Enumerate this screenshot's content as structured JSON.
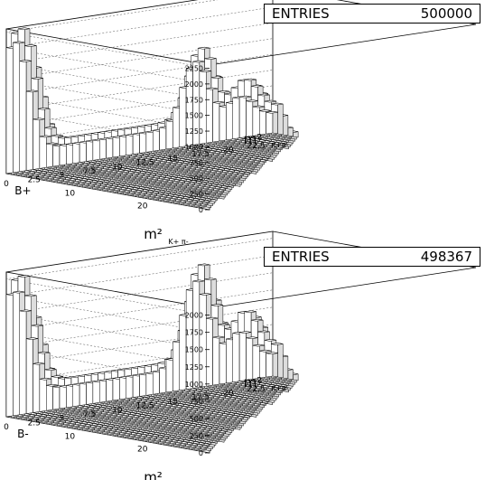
{
  "chart_data": [
    {
      "type": "3d-lego-histogram",
      "stats": {
        "label": "ENTRIES",
        "value": "500000"
      },
      "x_axis": {
        "label": "m²",
        "subscript": "π+π-",
        "ticks": [
          "0",
          "2.5",
          "5",
          "7.5",
          "10",
          "12.5",
          "15",
          "17.5",
          "20",
          "22.5"
        ],
        "range": [
          0,
          24
        ]
      },
      "y_axis": {
        "label": "m²",
        "subscript": "K+ π-",
        "ticks": [
          "10",
          "20"
        ],
        "range": [
          0,
          28
        ]
      },
      "z_axis": {
        "ticks": [
          "0",
          "250",
          "500",
          "750",
          "1000",
          "1250",
          "1500",
          "1750",
          "2000",
          "2250"
        ],
        "range": [
          0,
          2300
        ]
      },
      "title": "B+",
      "peaks": [
        {
          "x": 0.5,
          "y": 27,
          "z": 1600
        },
        {
          "x": 1,
          "y": 1,
          "z": 1600
        },
        {
          "x": 17,
          "y": 1,
          "z": 1100
        },
        {
          "x": 21,
          "y": 2,
          "z": 600
        }
      ]
    },
    {
      "type": "3d-lego-histogram",
      "stats": {
        "label": "ENTRIES",
        "value": "498367"
      },
      "x_axis": {
        "label": "m²",
        "subscript": "π+π-",
        "ticks": [
          "0",
          "2.5",
          "5",
          "7.5",
          "10",
          "12.5",
          "15",
          "17.5",
          "20",
          "22.5"
        ],
        "range": [
          0,
          24
        ]
      },
      "y_axis": {
        "label": "m²",
        "subscript": "K- π+",
        "ticks": [
          "10",
          "20"
        ],
        "range": [
          0,
          28
        ]
      },
      "z_axis": {
        "ticks": [
          "0",
          "250",
          "500",
          "750",
          "1000",
          "1250",
          "1500",
          "1750",
          "2000"
        ],
        "range": [
          0,
          2100
        ]
      },
      "title": "B-",
      "peaks": [
        {
          "x": 0.5,
          "y": 27,
          "z": 1150
        },
        {
          "x": 1,
          "y": 1,
          "z": 1300
        },
        {
          "x": 17,
          "y": 1,
          "z": 1350
        },
        {
          "x": 21,
          "y": 2,
          "z": 700
        }
      ]
    }
  ]
}
